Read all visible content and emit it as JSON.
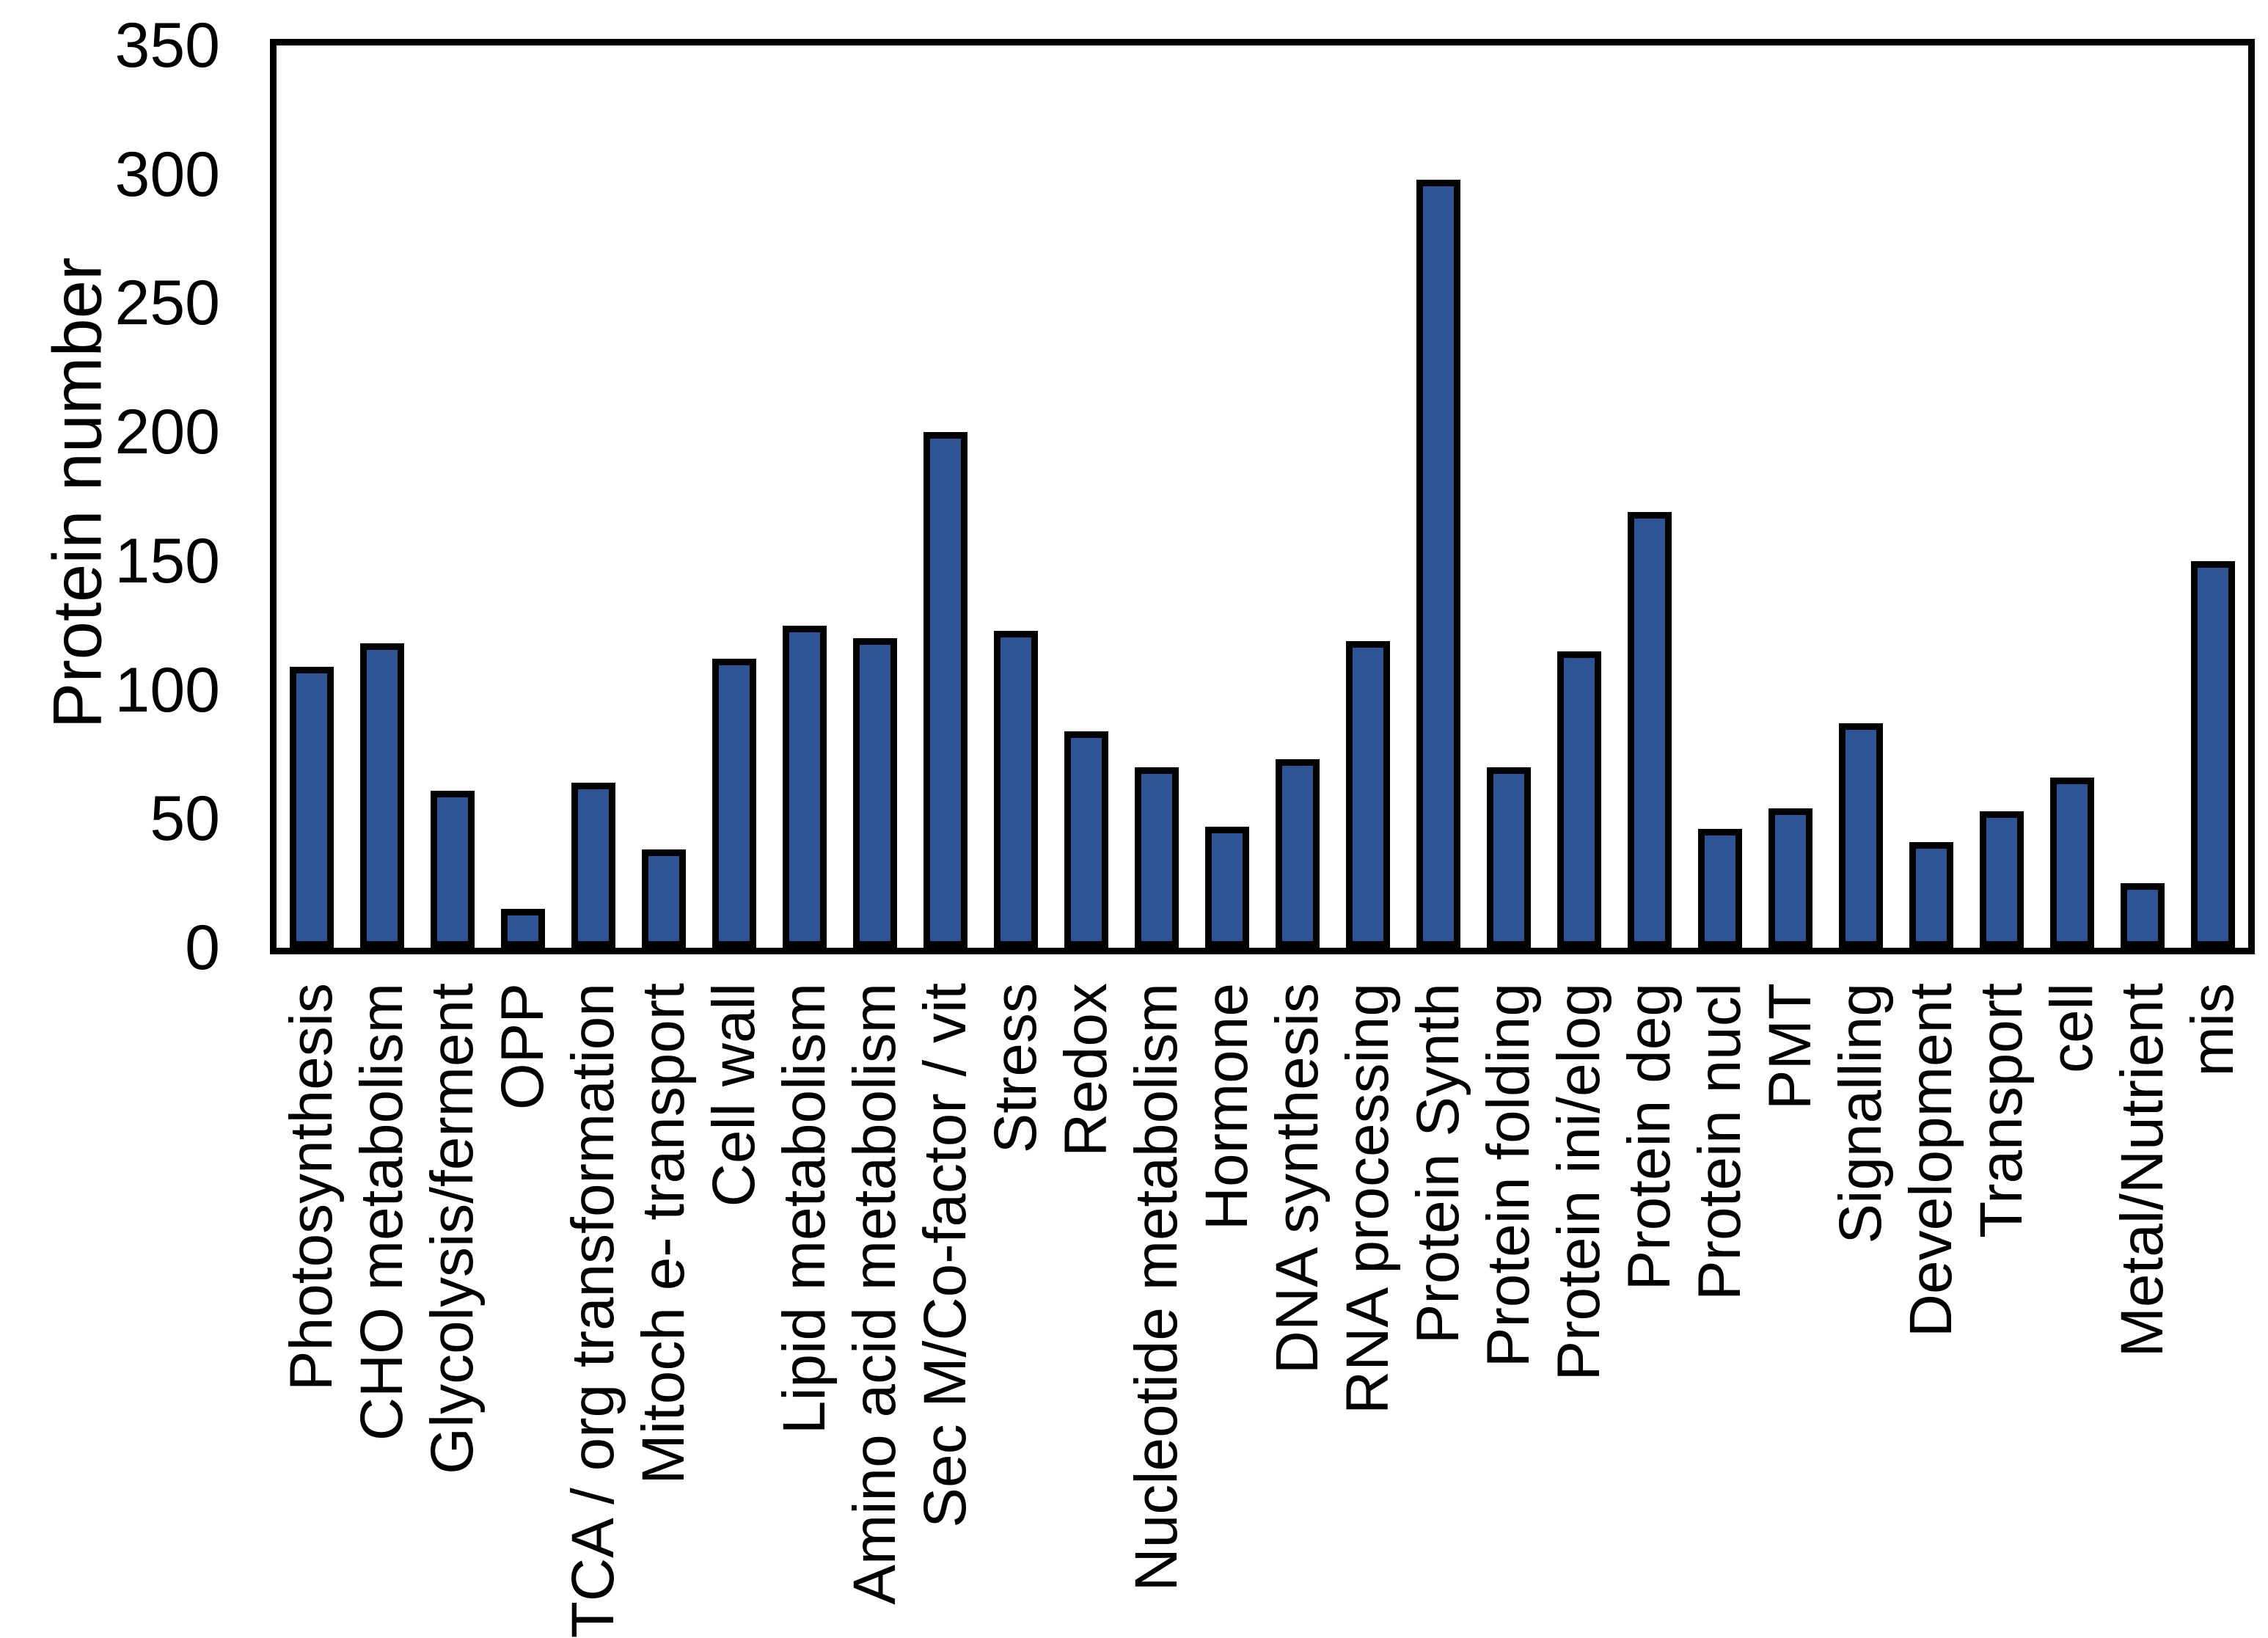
{
  "chart_data": {
    "type": "bar",
    "title": "",
    "xlabel": "",
    "ylabel": "Protein number",
    "ylim": [
      0,
      350
    ],
    "yticks": [
      0,
      50,
      100,
      150,
      200,
      250,
      300,
      350
    ],
    "grid": false,
    "legend": "none",
    "bar_fill_color": "#2F5496",
    "bar_border_color": "#000000",
    "categories": [
      "Photosynthesis",
      "CHO metabolism",
      "Glycolysis/ferment",
      "OPP",
      "TCA / org transformation",
      "Mitoch e- transport",
      "Cell wall",
      "Lipid metabolism",
      "Amino acid metabolism",
      "Sec M/Co-factor / vit",
      "Stress",
      "Redox",
      "Nucleotide metabolism",
      "Hormone",
      "DNA synthesis",
      "RNA processing",
      "Protein Synth",
      "Protein folding",
      "Protein ini/elog",
      "Protein deg",
      "Protein nucl",
      "PMT",
      "Signalling",
      "Development",
      "Transport",
      "cell",
      "Metal/Nutrient",
      "mis"
    ],
    "values": [
      109,
      118,
      61,
      15,
      64,
      38,
      112,
      125,
      120,
      200,
      123,
      84,
      70,
      47,
      73,
      119,
      298,
      70,
      115,
      169,
      46,
      54,
      87,
      41,
      53,
      66,
      25,
      150
    ]
  }
}
